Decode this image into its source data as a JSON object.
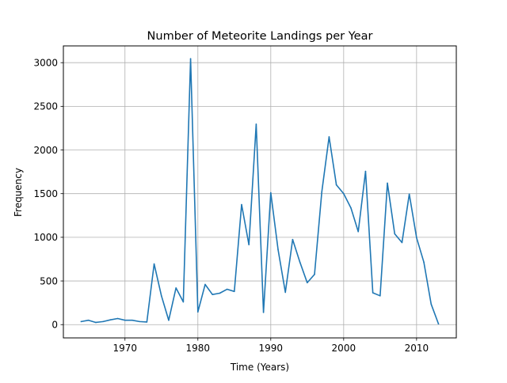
{
  "chart_data": {
    "type": "line",
    "title": "Number of Meteorite Landings per Year",
    "xlabel": "Time (Years)",
    "ylabel": "Frequency",
    "xlim": [
      1961.55,
      2015.45
    ],
    "ylim": [
      -152,
      3192
    ],
    "xticks": [
      1970,
      1980,
      1990,
      2000,
      2010
    ],
    "xtick_labels": [
      "1970",
      "1980",
      "1990",
      "2000",
      "2010"
    ],
    "yticks": [
      0,
      500,
      1000,
      1500,
      2000,
      2500,
      3000
    ],
    "ytick_labels": [
      "0",
      "500",
      "1000",
      "1500",
      "2000",
      "2500",
      "3000"
    ],
    "grid": true,
    "series": [
      {
        "color": "#1f77b4",
        "x": [
          1964,
          1965,
          1966,
          1967,
          1968,
          1969,
          1970,
          1971,
          1972,
          1973,
          1974,
          1975,
          1976,
          1977,
          1978,
          1979,
          1980,
          1981,
          1982,
          1983,
          1984,
          1985,
          1986,
          1987,
          1988,
          1989,
          1990,
          1991,
          1992,
          1993,
          1994,
          1995,
          1996,
          1997,
          1998,
          1999,
          2000,
          2001,
          2002,
          2003,
          2004,
          2005,
          2006,
          2007,
          2008,
          2009,
          2010,
          2011,
          2012,
          2013
        ],
        "y": [
          35,
          50,
          25,
          35,
          55,
          70,
          50,
          50,
          35,
          30,
          695,
          330,
          50,
          420,
          260,
          3045,
          145,
          460,
          345,
          360,
          405,
          380,
          1375,
          915,
          2295,
          140,
          1510,
          860,
          370,
          975,
          715,
          480,
          575,
          1520,
          2150,
          1600,
          1500,
          1335,
          1065,
          1755,
          365,
          330,
          1620,
          1040,
          940,
          1495,
          995,
          715,
          235,
          10
        ]
      }
    ]
  }
}
